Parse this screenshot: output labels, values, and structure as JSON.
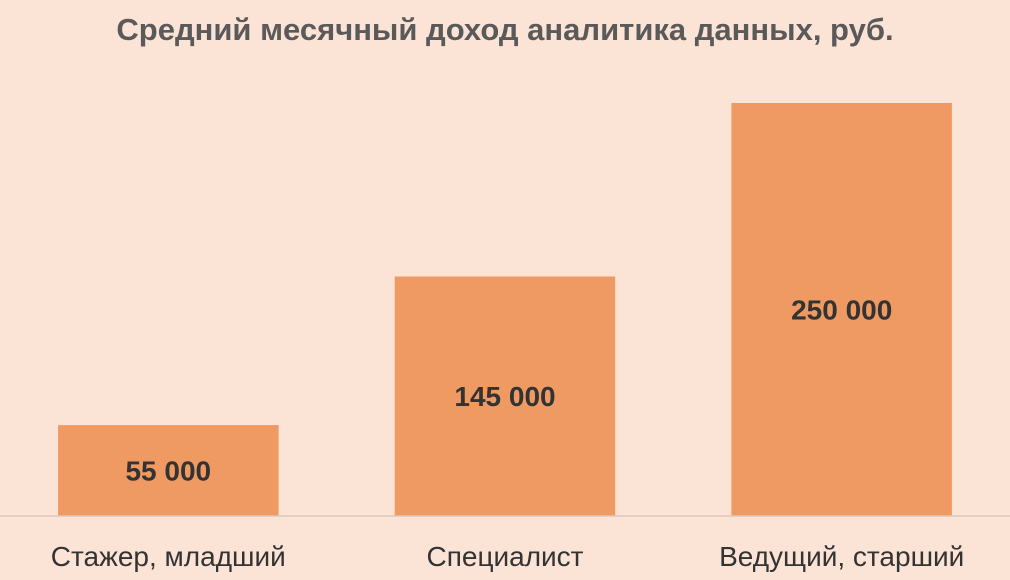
{
  "colors": {
    "background": "#fbe3d5",
    "bar": "#f09a63",
    "axis": "#d9c7bd",
    "title_text": "#5a5a5a",
    "label_text": "#333333"
  },
  "chart_data": {
    "type": "bar",
    "title": "Средний месячный доход аналитика данных, руб.",
    "categories": [
      "Стажер, младший",
      "Специалист",
      "Ведущий, старший"
    ],
    "values": [
      55000,
      145000,
      250000
    ],
    "data_labels": [
      "55 000",
      "145 000",
      "250 000"
    ],
    "ylim": [
      0,
      270000
    ],
    "grid": false,
    "legend": "none",
    "y_axis_visible": false
  }
}
